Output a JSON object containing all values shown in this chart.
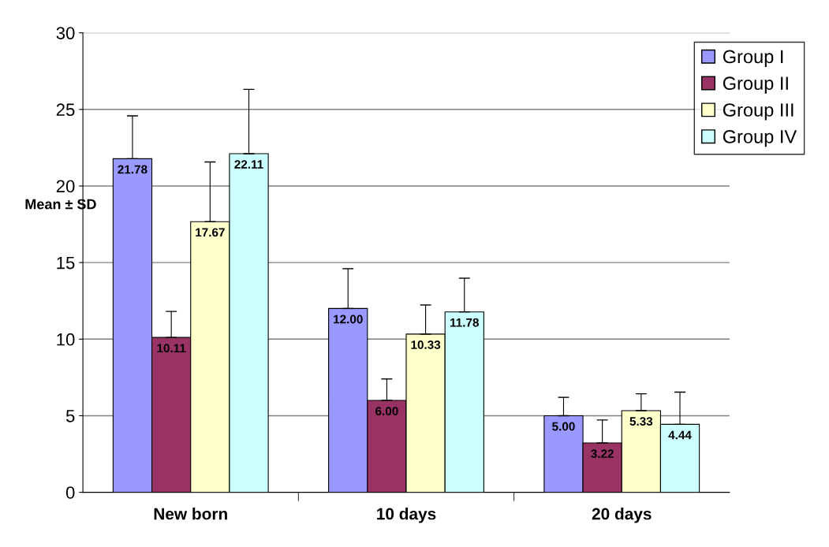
{
  "chart_data": {
    "type": "bar",
    "ylabel": "Mean ± SD",
    "categories": [
      "New born",
      "10 days",
      "20 days"
    ],
    "series": [
      {
        "name": "Group I",
        "color": "#9999ff",
        "values": [
          21.78,
          12.0,
          5.0
        ],
        "errors": [
          2.8,
          2.6,
          1.2
        ],
        "value_labels": [
          "21.78",
          "12.00",
          "5.00"
        ]
      },
      {
        "name": "Group II",
        "color": "#993366",
        "values": [
          10.11,
          6.0,
          3.22
        ],
        "errors": [
          1.7,
          1.4,
          1.5
        ],
        "value_labels": [
          "10.11",
          "6.00",
          "3.22"
        ]
      },
      {
        "name": "Group III",
        "color": "#ffffcc",
        "values": [
          17.67,
          10.33,
          5.33
        ],
        "errors": [
          3.9,
          1.9,
          1.1
        ],
        "value_labels": [
          "17.67",
          "10.33",
          "5.33"
        ]
      },
      {
        "name": "Group IV",
        "color": "#ccffff",
        "values": [
          22.11,
          11.78,
          4.44
        ],
        "errors": [
          4.2,
          2.2,
          2.1
        ],
        "value_labels": [
          "22.11",
          "11.78",
          "4.44"
        ]
      }
    ],
    "ylim": [
      0,
      30
    ],
    "yticks": [
      0,
      5,
      10,
      15,
      20,
      25,
      30
    ],
    "grid": "y",
    "legend": "top right"
  }
}
